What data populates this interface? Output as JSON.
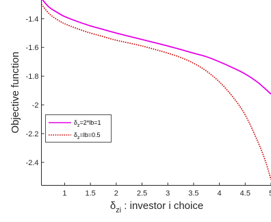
{
  "chart_data": {
    "type": "line",
    "title": "",
    "ylabel": "Objective function",
    "xlabel": {
      "symbol": "δ",
      "subscript": "zi",
      "text": " : investor i choice"
    },
    "xlim": [
      0.55,
      5.0
    ],
    "ylim": [
      -2.56,
      -1.27
    ],
    "xticks": [
      1,
      1.5,
      2,
      2.5,
      3,
      3.5,
      4,
      4.5,
      5
    ],
    "xtick_labels": [
      "1",
      "1.5",
      "2",
      "2.5",
      "3",
      "3.5",
      "4",
      "4.5",
      "5"
    ],
    "yticks": [
      -1.4,
      -1.6,
      -1.8,
      -2,
      -2.2,
      -2.4
    ],
    "ytick_labels": [
      "-1.4",
      "-1.6",
      "-1.8",
      "-2",
      "-2.2",
      "-2.4"
    ],
    "grid": false,
    "legend_position": "middle-left",
    "series": [
      {
        "name": "δz=2*lb=1",
        "legend": {
          "symbol": "δ",
          "subscript": "z",
          "rest": "=2*lb=1"
        },
        "color": "#e600e6",
        "style": "solid",
        "x": [
          0.55,
          0.7,
          0.85,
          1.0,
          1.25,
          1.5,
          1.75,
          2.0,
          2.5,
          3.0,
          3.5,
          3.75,
          4.0,
          4.25,
          4.5,
          4.75,
          5.0
        ],
        "y": [
          -1.26,
          -1.32,
          -1.355,
          -1.385,
          -1.42,
          -1.45,
          -1.475,
          -1.5,
          -1.545,
          -1.59,
          -1.64,
          -1.665,
          -1.7,
          -1.74,
          -1.785,
          -1.845,
          -1.925
        ]
      },
      {
        "name": "δz=lb=0.5",
        "legend": {
          "symbol": "δ",
          "subscript": "z",
          "rest": "=lb=0.5"
        },
        "color": "#cc0000",
        "style": "dotted",
        "x": [
          0.55,
          0.7,
          0.85,
          1.0,
          1.25,
          1.5,
          1.75,
          2.0,
          2.5,
          3.0,
          3.25,
          3.5,
          3.75,
          4.0,
          4.25,
          4.5,
          4.75,
          4.9,
          5.0
        ],
        "y": [
          -1.3,
          -1.365,
          -1.405,
          -1.435,
          -1.47,
          -1.5,
          -1.525,
          -1.55,
          -1.59,
          -1.64,
          -1.67,
          -1.71,
          -1.765,
          -1.84,
          -1.94,
          -2.07,
          -2.26,
          -2.4,
          -2.52
        ]
      }
    ]
  }
}
